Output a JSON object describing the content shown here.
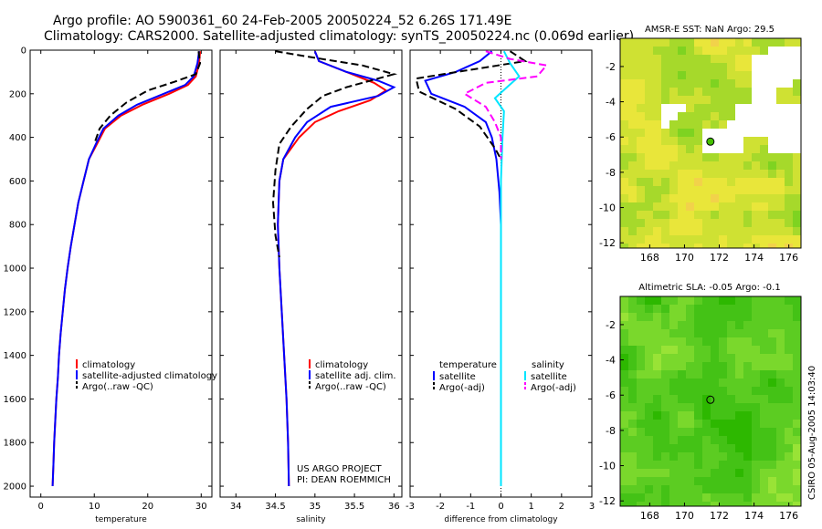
{
  "figure": {
    "title_line1": "Argo profile: AO 5900361_60 24-Feb-2005 20050224_52 6.26S 171.49E",
    "title_line2": "Climatology: CARS2000. Satellite-adjusted climatology: synTS_20050224.nc (0.069d earlier)",
    "credit": "CSIRO 05-Aug-2005 14:03:40",
    "colors": {
      "climatology": "#ff0000",
      "satellite": "#0000ff",
      "argo": "#000000",
      "salinity_satellite": "#00e5ff",
      "salinity_argo": "#ff00ff"
    }
  },
  "chart_data": [
    {
      "id": "temperature",
      "type": "line",
      "xlabel": "temperature",
      "xlim": [
        -2,
        32
      ],
      "xticks": [
        0,
        10,
        20,
        30
      ],
      "ylim": [
        0,
        2050
      ],
      "yticks": [
        0,
        200,
        400,
        600,
        800,
        1000,
        1200,
        1400,
        1600,
        1800,
        2000
      ],
      "legend": [
        "climatology",
        "satellite-adjusted climatology",
        "Argo(..raw -QC)"
      ],
      "series": [
        {
          "name": "climatology",
          "style": "solid",
          "color": "#ff0000",
          "points": [
            [
              29.8,
              5
            ],
            [
              29.6,
              60
            ],
            [
              29,
              120
            ],
            [
              27.5,
              160
            ],
            [
              24,
              200
            ],
            [
              19,
              250
            ],
            [
              15,
              300
            ],
            [
              12,
              360
            ],
            [
              10.5,
              430
            ],
            [
              9,
              500
            ],
            [
              8,
              600
            ],
            [
              7,
              700
            ],
            [
              6.3,
              800
            ],
            [
              5.6,
              900
            ],
            [
              5,
              1000
            ],
            [
              4.5,
              1100
            ],
            [
              4.1,
              1200
            ],
            [
              3.7,
              1300
            ],
            [
              3.4,
              1400
            ],
            [
              3.2,
              1500
            ],
            [
              2.9,
              1600
            ],
            [
              2.7,
              1700
            ],
            [
              2.5,
              1800
            ],
            [
              2.35,
              1900
            ],
            [
              2.2,
              2000
            ]
          ]
        },
        {
          "name": "satellite-adjusted climatology",
          "style": "solid",
          "color": "#0000ff",
          "points": [
            [
              29.6,
              5
            ],
            [
              29.3,
              60
            ],
            [
              28.6,
              120
            ],
            [
              27,
              160
            ],
            [
              23,
              200
            ],
            [
              18,
              250
            ],
            [
              14.5,
              300
            ],
            [
              11.7,
              360
            ],
            [
              10.3,
              430
            ],
            [
              9,
              500
            ],
            [
              8,
              600
            ],
            [
              7,
              700
            ],
            [
              6.3,
              800
            ],
            [
              5.6,
              900
            ],
            [
              5,
              1000
            ],
            [
              4.5,
              1100
            ],
            [
              4.1,
              1200
            ],
            [
              3.7,
              1300
            ],
            [
              3.4,
              1400
            ],
            [
              3.2,
              1500
            ],
            [
              2.9,
              1600
            ],
            [
              2.7,
              1700
            ],
            [
              2.5,
              1800
            ],
            [
              2.35,
              1900
            ],
            [
              2.2,
              2000
            ]
          ]
        },
        {
          "name": "Argo(..raw -QC)",
          "style": "dashed",
          "color": "#000000",
          "points": [
            [
              29.5,
              5
            ],
            [
              29.8,
              60
            ],
            [
              29,
              110
            ],
            [
              25,
              145
            ],
            [
              20,
              185
            ],
            [
              16,
              240
            ],
            [
              13,
              300
            ],
            [
              11,
              360
            ],
            [
              10,
              430
            ]
          ]
        }
      ]
    },
    {
      "id": "salinity",
      "type": "line",
      "xlabel": "salinity",
      "xlim": [
        33.8,
        36.1
      ],
      "xticks": [
        34,
        34.5,
        35,
        35.5,
        36
      ],
      "ylim": [
        0,
        2050
      ],
      "legend": [
        "climatology",
        "satellite adj. clim.",
        "Argo(..raw -QC)"
      ],
      "annotation": [
        "US ARGO PROJECT",
        "PI: DEAN ROEMMICH"
      ],
      "series": [
        {
          "name": "climatology",
          "style": "solid",
          "color": "#ff0000",
          "points": [
            [
              35,
              5
            ],
            [
              35.05,
              50
            ],
            [
              35.4,
              100
            ],
            [
              35.75,
              150
            ],
            [
              35.9,
              185
            ],
            [
              35.7,
              230
            ],
            [
              35.3,
              280
            ],
            [
              35,
              330
            ],
            [
              34.8,
              400
            ],
            [
              34.6,
              500
            ],
            [
              34.55,
              600
            ],
            [
              34.53,
              800
            ],
            [
              34.55,
              1000
            ],
            [
              34.58,
              1200
            ],
            [
              34.61,
              1400
            ],
            [
              34.64,
              1600
            ],
            [
              34.66,
              1800
            ],
            [
              34.67,
              2000
            ]
          ]
        },
        {
          "name": "satellite adj. clim.",
          "style": "solid",
          "color": "#0000ff",
          "points": [
            [
              35,
              5
            ],
            [
              35.05,
              50
            ],
            [
              35.4,
              100
            ],
            [
              35.8,
              140
            ],
            [
              36,
              170
            ],
            [
              35.8,
              210
            ],
            [
              35.2,
              260
            ],
            [
              34.9,
              330
            ],
            [
              34.75,
              400
            ],
            [
              34.6,
              500
            ],
            [
              34.55,
              600
            ],
            [
              34.53,
              800
            ],
            [
              34.55,
              1000
            ],
            [
              34.58,
              1200
            ],
            [
              34.61,
              1400
            ],
            [
              34.64,
              1600
            ],
            [
              34.66,
              1800
            ],
            [
              34.67,
              2000
            ]
          ]
        },
        {
          "name": "Argo(..raw -QC)",
          "style": "dashed",
          "color": "#000000",
          "points": [
            [
              34.5,
              5
            ],
            [
              35,
              35
            ],
            [
              35.6,
              70
            ],
            [
              36,
              110
            ],
            [
              35.4,
              170
            ],
            [
              35.1,
              210
            ],
            [
              34.9,
              270
            ],
            [
              34.7,
              350
            ],
            [
              34.55,
              430
            ],
            [
              34.5,
              550
            ],
            [
              34.47,
              700
            ],
            [
              34.5,
              850
            ],
            [
              34.55,
              950
            ]
          ]
        }
      ]
    },
    {
      "id": "difference",
      "type": "line",
      "xlabel": "difference from climatology",
      "xlim": [
        -3,
        3
      ],
      "xticks": [
        -3,
        -2,
        -1,
        0,
        1,
        2,
        3
      ],
      "ylim": [
        0,
        2050
      ],
      "legend_left": [
        "temperature",
        "satellite",
        "Argo(-adj)"
      ],
      "legend_right": [
        "salinity",
        "satellite",
        "Argo(-adj)"
      ],
      "series": [
        {
          "name": "temperature satellite",
          "style": "solid",
          "color": "#0000ff",
          "points": [
            [
              -0.3,
              5
            ],
            [
              -0.7,
              50
            ],
            [
              -1.5,
              100
            ],
            [
              -2.5,
              140
            ],
            [
              -2.3,
              200
            ],
            [
              -1.2,
              260
            ],
            [
              -0.5,
              330
            ],
            [
              -0.3,
              400
            ],
            [
              -0.15,
              500
            ],
            [
              -0.05,
              650
            ],
            [
              0,
              800
            ],
            [
              0,
              1000
            ],
            [
              0,
              2000
            ]
          ]
        },
        {
          "name": "temperature Argo(-adj)",
          "style": "dashed",
          "color": "#000000",
          "points": [
            [
              0.3,
              5
            ],
            [
              0.8,
              50
            ],
            [
              -1,
              90
            ],
            [
              -2.8,
              130
            ],
            [
              -2.7,
              190
            ],
            [
              -1.5,
              270
            ],
            [
              -0.7,
              350
            ],
            [
              -0.2,
              450
            ],
            [
              0,
              500
            ]
          ]
        },
        {
          "name": "salinity satellite",
          "style": "solid",
          "color": "#00e5ff",
          "points": [
            [
              0.1,
              5
            ],
            [
              0.3,
              60
            ],
            [
              0.6,
              120
            ],
            [
              0.2,
              170
            ],
            [
              -0.2,
              220
            ],
            [
              0.1,
              280
            ],
            [
              0.05,
              400
            ],
            [
              0,
              600
            ],
            [
              0,
              1000
            ],
            [
              0,
              2000
            ]
          ]
        },
        {
          "name": "salinity Argo(-adj)",
          "style": "dashed",
          "color": "#ff00ff",
          "points": [
            [
              -0.5,
              5
            ],
            [
              0.3,
              40
            ],
            [
              1.5,
              70
            ],
            [
              1.2,
              120
            ],
            [
              -0.5,
              150
            ],
            [
              -1.2,
              200
            ],
            [
              -0.5,
              260
            ],
            [
              -0.2,
              330
            ],
            [
              0,
              400
            ],
            [
              0,
              500
            ]
          ]
        }
      ]
    },
    {
      "id": "sst_map",
      "type": "heatmap",
      "title": "AMSR-E SST: NaN Argo: 29.5",
      "xticks": [
        168,
        170,
        172,
        174,
        176
      ],
      "yticks": [
        -2,
        -4,
        -6,
        -8,
        -10,
        -12
      ],
      "xlim": [
        166.3,
        176.7
      ],
      "ylim": [
        -12.3,
        -0.4
      ],
      "marker": [
        171.49,
        -6.26
      ],
      "palette": [
        "#7ed321",
        "#a6d92b",
        "#cfe133",
        "#e9e63a",
        "#f2d24a"
      ]
    },
    {
      "id": "sla_map",
      "type": "heatmap",
      "title": "Altimetric SLA: -0.05 Argo: -0.1",
      "xticks": [
        168,
        170,
        172,
        174,
        176
      ],
      "yticks": [
        -2,
        -4,
        -6,
        -8,
        -10,
        -12
      ],
      "xlim": [
        166.3,
        176.7
      ],
      "ylim": [
        -12.3,
        -0.4
      ],
      "marker": [
        171.49,
        -6.26
      ],
      "palette": [
        "#2db800",
        "#44c216",
        "#5ccc22",
        "#7ad82c",
        "#99e336"
      ]
    }
  ]
}
